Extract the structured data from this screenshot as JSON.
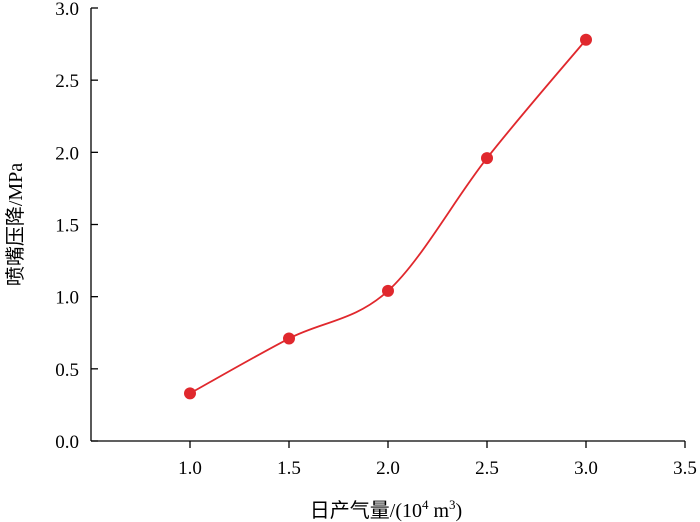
{
  "chart_data": {
    "type": "line",
    "title": "",
    "xlabel": "日产气量/(10",
    "xlabel_exp1": "4",
    "xlabel_mid": " m",
    "xlabel_exp2": "3",
    "xlabel_end": ")",
    "ylabel": "喷嘴压降/MPa",
    "xlim": [
      0.5,
      3.5
    ],
    "ylim": [
      0.0,
      3.0
    ],
    "xticks": [
      1.0,
      1.5,
      2.0,
      2.5,
      3.0,
      3.5
    ],
    "xtick_labels": [
      "1.0",
      "1.5",
      "2.0",
      "2.5",
      "3.0",
      "3.5"
    ],
    "yticks": [
      0.0,
      0.5,
      1.0,
      1.5,
      2.0,
      2.5,
      3.0
    ],
    "ytick_labels": [
      "0.0",
      "0.5",
      "1.0",
      "1.5",
      "2.0",
      "2.5",
      "3.0"
    ],
    "grid": false,
    "smooth": true,
    "series": [
      {
        "color": "#e0282d",
        "x": [
          1.0,
          1.5,
          2.0,
          2.5,
          3.0
        ],
        "y": [
          0.33,
          0.71,
          1.04,
          1.96,
          2.78
        ]
      }
    ]
  }
}
